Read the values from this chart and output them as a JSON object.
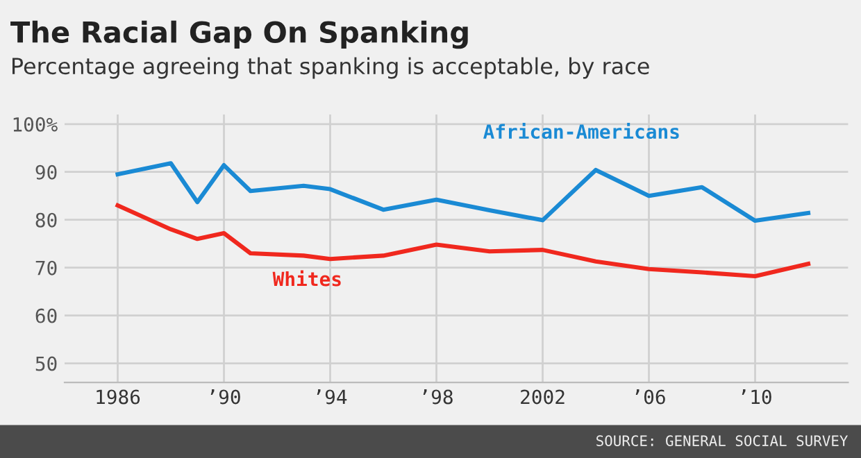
{
  "chart_data": {
    "type": "line",
    "title": "The Racial Gap On Spanking",
    "subtitle": "Percentage agreeing that spanking is acceptable, by race",
    "x": [
      1986,
      1988,
      1989,
      1990,
      1991,
      1993,
      1994,
      1996,
      1998,
      2000,
      2002,
      2004,
      2006,
      2008,
      2010,
      2012
    ],
    "series": [
      {
        "name": "African-Americans",
        "color": "#1a8ad4",
        "values": [
          89.5,
          91.8,
          83.7,
          91.4,
          86,
          87.1,
          86.4,
          82.1,
          84.2,
          82,
          79.9,
          90.4,
          85,
          86.8,
          79.8,
          81.4
        ]
      },
      {
        "name": "Whites",
        "color": "#f0281e",
        "values": [
          83,
          78,
          76,
          77.2,
          73,
          72.5,
          71.8,
          72.5,
          74.8,
          73.4,
          73.7,
          71.3,
          69.7,
          69,
          68.2,
          70.8
        ]
      }
    ],
    "xlim": [
      1984,
      2013.5
    ],
    "xticks": [
      1986,
      {
        "value": 1990,
        "label": "’90"
      },
      {
        "value": 1994,
        "label": "’94"
      },
      {
        "value": 1998,
        "label": "’98"
      },
      2002,
      {
        "value": 2006,
        "label": "’06"
      },
      {
        "value": 2010,
        "label": "’10"
      }
    ],
    "ylim": [
      46,
      102
    ],
    "yticks": [
      50,
      60,
      70,
      80,
      90,
      {
        "value": 100,
        "label": "100%"
      }
    ],
    "grid": true,
    "legend": false,
    "marker": "none",
    "line_style": "solid",
    "annotations": [
      "SOURCE: GENERAL SOCIAL SURVEY"
    ]
  }
}
